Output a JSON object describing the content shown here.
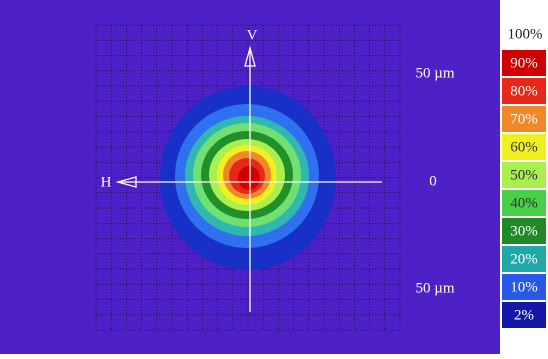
{
  "axes": {
    "vertical": "V",
    "horizontal": "H",
    "top_label": "50 µm",
    "center_label": "0",
    "bottom_label": "50 µm"
  },
  "legend": {
    "top": "100%",
    "levels": [
      {
        "label": "90%",
        "color": "#d00000"
      },
      {
        "label": "80%",
        "color": "#e82818"
      },
      {
        "label": "70%",
        "color": "#f08828"
      },
      {
        "label": "60%",
        "color": "#f0f020"
      },
      {
        "label": "50%",
        "color": "#a8f050"
      },
      {
        "label": "40%",
        "color": "#48d048"
      },
      {
        "label": "30%",
        "color": "#208a28"
      },
      {
        "label": "20%",
        "color": "#20a8a8"
      },
      {
        "label": "10%",
        "color": "#2858e8"
      },
      {
        "label": "2%",
        "color": "#1418a8"
      }
    ]
  }
}
